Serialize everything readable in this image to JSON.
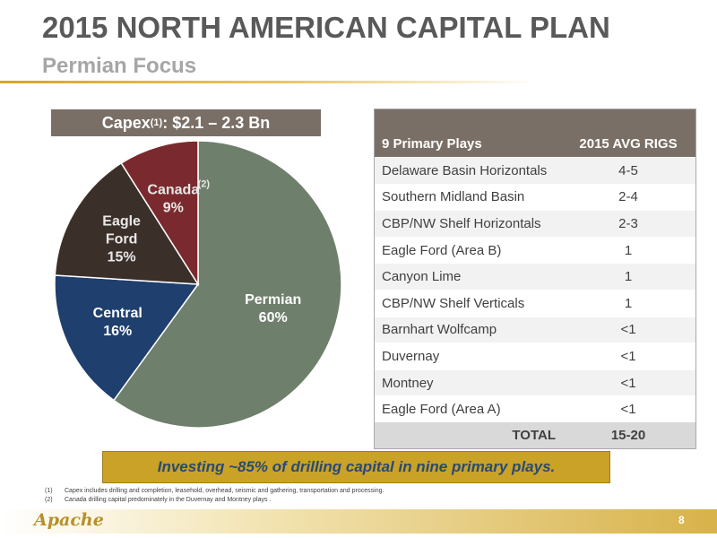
{
  "header": {
    "title": "2015 NORTH AMERICAN CAPITAL PLAN",
    "subtitle": "Permian Focus"
  },
  "capex": {
    "label": "Capex",
    "sup": "(1)",
    "value": ": $2.1 – 2.3 Bn"
  },
  "chart_data": {
    "type": "pie",
    "slices": [
      {
        "name": "Permian",
        "value": 60,
        "label": "60%",
        "color": "#6e7f6b"
      },
      {
        "name": "Central",
        "value": 16,
        "label": "16%",
        "color": "#1f3f6e"
      },
      {
        "name": "Eagle Ford",
        "value": 15,
        "label": "15%",
        "color": "#3b2f2a"
      },
      {
        "name": "Canada",
        "value": 9,
        "label": "9%",
        "color": "#7a2a2e",
        "note": "(2)"
      }
    ]
  },
  "table": {
    "col1_header": "9 Primary Plays",
    "col2_header": "2015 AVG RIGS",
    "rows": [
      {
        "play": "Delaware Basin Horizontals",
        "rigs": "4-5"
      },
      {
        "play": "Southern Midland Basin",
        "rigs": "2-4"
      },
      {
        "play": "CBP/NW Shelf Horizontals",
        "rigs": "2-3"
      },
      {
        "play": "Eagle Ford (Area B)",
        "rigs": "1"
      },
      {
        "play": "Canyon Lime",
        "rigs": "1"
      },
      {
        "play": "CBP/NW Shelf Verticals",
        "rigs": "1"
      },
      {
        "play": "Barnhart Wolfcamp",
        "rigs": "<1"
      },
      {
        "play": "Duvernay",
        "rigs": "<1"
      },
      {
        "play": "Montney",
        "rigs": "<1"
      },
      {
        "play": "Eagle Ford (Area A)",
        "rigs": "<1"
      }
    ],
    "total_label": "TOTAL",
    "total_value": "15-20"
  },
  "callout": "Investing ~85% of drilling capital in nine primary plays.",
  "footnotes": [
    {
      "num": "(1)",
      "text": "Capex includes drilling and completion, leasehold, overhead, seismic and gathering, transportation and processing."
    },
    {
      "num": "(2)",
      "text": "Canada drilling capital predominately in the Duvernay and Montney plays ."
    }
  ],
  "footer": {
    "logo": "Apache",
    "page_number": "8"
  }
}
